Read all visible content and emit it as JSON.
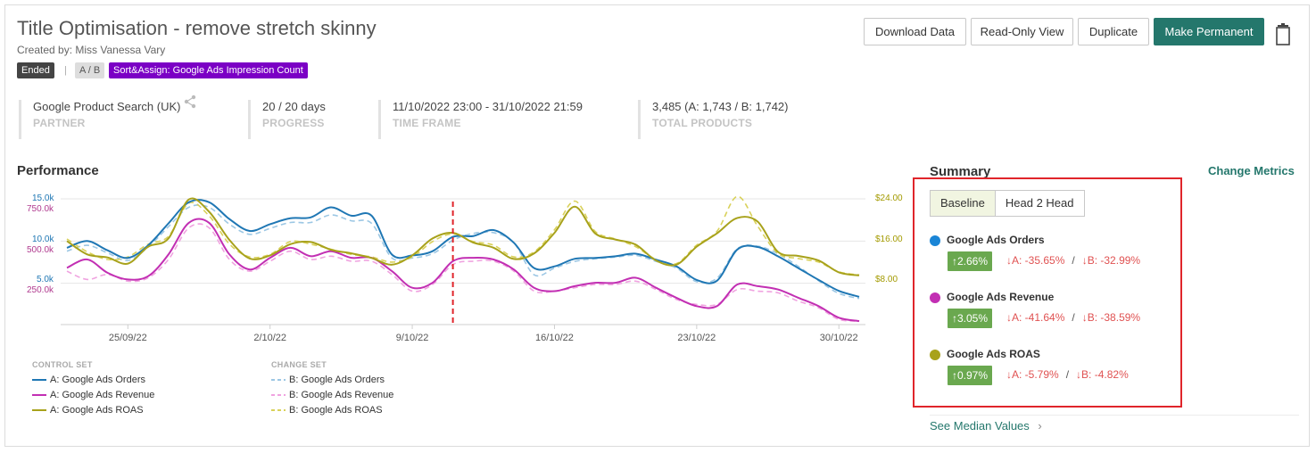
{
  "header": {
    "title": "Title Optimisation - remove stretch skinny",
    "created_by": "Created by: Miss Vanessa Vary",
    "badges": {
      "status": "Ended",
      "separator": "|",
      "type": "A / B",
      "sort": "Sort&Assign: Google Ads Impression Count"
    }
  },
  "toolbar": {
    "download_label": "Download Data",
    "readonly_label": "Read-Only View",
    "duplicate_label": "Duplicate",
    "permanent_label": "Make Permanent"
  },
  "info": {
    "partner": {
      "value": "Google Product Search (UK)",
      "label": "PARTNER"
    },
    "progress": {
      "value": "20 / 20 days",
      "label": "PROGRESS"
    },
    "timeframe": {
      "value": "11/10/2022 23:00 - 31/10/2022 21:59",
      "label": "TIME FRAME"
    },
    "products": {
      "value": "3,485 (A: 1,743 / B: 1,742)",
      "label": "TOTAL PRODUCTS"
    }
  },
  "performance": {
    "title": "Performance"
  },
  "chart_data": {
    "type": "line",
    "x": [
      "22/09/22",
      "23/09/22",
      "24/09/22",
      "25/09/22",
      "26/09/22",
      "27/09/22",
      "28/09/22",
      "29/09/22",
      "30/09/22",
      "1/10/22",
      "2/10/22",
      "3/10/22",
      "4/10/22",
      "5/10/22",
      "6/10/22",
      "7/10/22",
      "8/10/22",
      "9/10/22",
      "10/10/22",
      "11/10/22",
      "12/10/22",
      "13/10/22",
      "14/10/22",
      "15/10/22",
      "16/10/22",
      "17/10/22",
      "18/10/22",
      "19/10/22",
      "20/10/22",
      "21/10/22",
      "22/10/22",
      "23/10/22",
      "24/10/22",
      "25/10/22",
      "26/10/22",
      "27/10/22",
      "28/10/22",
      "29/10/22",
      "30/10/22",
      "31/10/22"
    ],
    "x_ticks": [
      "25/09/22",
      "2/10/22",
      "9/10/22",
      "16/10/22",
      "23/10/22",
      "30/10/22"
    ],
    "split_marker": "11/10/22",
    "left_axis_orders_ticks": [
      "15.0k",
      "10.0k",
      "5.0k"
    ],
    "left_axis_revenue_ticks": [
      "750.0k",
      "500.0k",
      "250.0k"
    ],
    "right_axis_roas_ticks": [
      "$24.00",
      "$16.00",
      "$8.00"
    ],
    "series": [
      {
        "name": "A: Google Ads Orders",
        "group": "CONTROL SET",
        "axis": "orders",
        "color": "#1f77b4",
        "dash": false,
        "values": [
          9.2,
          10.0,
          8.9,
          8.0,
          9.5,
          12.1,
          14.6,
          14.6,
          12.6,
          11.2,
          12.0,
          12.7,
          12.8,
          14.0,
          13.0,
          13.0,
          8.4,
          8.3,
          8.8,
          10.5,
          10.6,
          11.3,
          9.8,
          6.8,
          7.0,
          7.9,
          8.0,
          8.2,
          8.5,
          7.8,
          7.0,
          5.4,
          5.3,
          9.0,
          9.3,
          8.2,
          6.8,
          5.4,
          4.1,
          3.4
        ]
      },
      {
        "name": "A: Google Ads Revenue",
        "group": "CONTROL SET",
        "axis": "revenue",
        "color": "#c22fb3",
        "dash": false,
        "values": [
          400,
          450,
          370,
          330,
          350,
          480,
          670,
          670,
          480,
          390,
          460,
          520,
          470,
          500,
          460,
          460,
          380,
          280,
          310,
          440,
          460,
          450,
          390,
          280,
          260,
          290,
          310,
          310,
          340,
          280,
          220,
          170,
          170,
          300,
          290,
          270,
          220,
          170,
          100,
          80
        ]
      },
      {
        "name": "A: Google Ads ROAS",
        "group": "CONTROL SET",
        "axis": "roas",
        "color": "#a8a21b",
        "dash": false,
        "values": [
          15.6,
          13.0,
          12.4,
          11.2,
          14.5,
          16.1,
          23.7,
          21.3,
          15.8,
          12.2,
          12.8,
          15.0,
          15.4,
          13.9,
          13.2,
          12.3,
          11.0,
          12.8,
          16.1,
          17.2,
          15.3,
          14.3,
          12.1,
          13.2,
          17.2,
          22.3,
          17.1,
          15.9,
          14.9,
          11.8,
          11.0,
          14.5,
          17.1,
          20.1,
          19.4,
          13.5,
          12.7,
          11.8,
          9.5,
          8.9
        ]
      },
      {
        "name": "B: Google Ads Orders",
        "group": "CHANGE SET",
        "axis": "orders",
        "color": "#9cc7e4",
        "dash": true,
        "values": [
          8.8,
          9.5,
          8.6,
          7.7,
          9.3,
          11.7,
          14.0,
          14.0,
          12.0,
          10.8,
          11.5,
          12.2,
          12.2,
          13.1,
          12.4,
          12.1,
          8.0,
          8.0,
          8.5,
          10.1,
          10.9,
          11.0,
          9.8,
          6.0,
          6.8,
          7.6,
          7.9,
          8.1,
          8.3,
          7.6,
          6.8,
          5.2,
          5.6,
          9.1,
          9.4,
          8.5,
          7.0,
          5.3,
          3.8,
          3.2
        ]
      },
      {
        "name": "B: Google Ads Revenue",
        "group": "CHANGE SET",
        "axis": "revenue",
        "color": "#f0a3e0",
        "dash": true,
        "values": [
          380,
          330,
          360,
          320,
          340,
          450,
          640,
          640,
          450,
          380,
          440,
          500,
          450,
          470,
          440,
          440,
          360,
          260,
          300,
          420,
          440,
          440,
          380,
          260,
          260,
          280,
          300,
          300,
          320,
          270,
          210,
          180,
          180,
          270,
          260,
          250,
          200,
          160,
          90,
          80
        ]
      },
      {
        "name": "B: Google Ads ROAS",
        "group": "CHANGE SET",
        "axis": "roas",
        "color": "#d9d15a",
        "dash": true,
        "values": [
          16.0,
          13.5,
          12.0,
          12.5,
          15.0,
          16.5,
          23.0,
          20.5,
          15.0,
          12.5,
          13.0,
          15.5,
          15.0,
          14.0,
          13.0,
          12.5,
          11.5,
          12.5,
          15.5,
          17.0,
          15.5,
          14.8,
          12.5,
          13.5,
          17.8,
          23.4,
          17.5,
          16.0,
          14.5,
          12.0,
          11.2,
          14.8,
          17.5,
          24.3,
          18.5,
          13.2,
          12.2,
          11.5,
          9.6,
          9.0
        ]
      }
    ]
  },
  "legend": {
    "control_header": "CONTROL SET",
    "change_header": "CHANGE SET"
  },
  "summary": {
    "title": "Summary",
    "change_metrics": "Change Metrics",
    "tabs": {
      "baseline": "Baseline",
      "head2head": "Head 2 Head"
    },
    "metrics": [
      {
        "name": "Google Ads Orders",
        "color": "#1a85d6",
        "change": "↑2.66%",
        "a": "↓A: -35.65%",
        "b": "↓B: -32.99%"
      },
      {
        "name": "Google Ads Revenue",
        "color": "#c22fb3",
        "change": "↑3.05%",
        "a": "↓A: -41.64%",
        "b": "↓B: -38.59%"
      },
      {
        "name": "Google Ads ROAS",
        "color": "#a8a21b",
        "change": "↑0.97%",
        "a": "↓A: -5.79%",
        "b": "↓B: -4.82%"
      }
    ],
    "slash": "/",
    "median_link": "See Median Values"
  }
}
